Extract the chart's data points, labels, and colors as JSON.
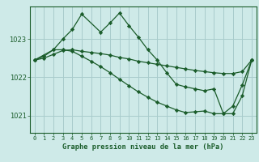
{
  "title": "Graphe pression niveau de la mer (hPa)",
  "bg_color": "#ceeae8",
  "plot_bg_color": "#ceeae8",
  "grid_color": "#a8cccc",
  "line_color": "#1a5c2a",
  "x_ticks": [
    0,
    1,
    2,
    3,
    4,
    5,
    6,
    7,
    8,
    9,
    10,
    11,
    12,
    13,
    14,
    15,
    16,
    17,
    18,
    19,
    20,
    21,
    22,
    23
  ],
  "y_ticks": [
    1021,
    1022,
    1023
  ],
  "ylim": [
    1020.55,
    1023.85
  ],
  "xlim": [
    -0.5,
    23.5
  ],
  "series": [
    {
      "x": [
        0,
        1,
        2,
        3,
        4,
        5,
        6,
        7,
        8,
        9,
        10,
        11,
        12,
        13,
        14,
        15,
        16,
        17,
        18,
        19,
        20,
        21,
        22,
        23
      ],
      "y": [
        1022.45,
        1022.5,
        1022.6,
        1022.7,
        1022.72,
        1022.68,
        1022.65,
        1022.62,
        1022.58,
        1022.52,
        1022.48,
        1022.42,
        1022.38,
        1022.34,
        1022.3,
        1022.26,
        1022.22,
        1022.18,
        1022.15,
        1022.12,
        1022.1,
        1022.1,
        1022.15,
        1022.45
      ],
      "marker": "D",
      "markersize": 2.2,
      "linewidth": 0.9
    },
    {
      "x": [
        0,
        1,
        2,
        3,
        4,
        5,
        6,
        7,
        8,
        9,
        10,
        11,
        12,
        13,
        14,
        15,
        16,
        17,
        18,
        19,
        20,
        21,
        22,
        23
      ],
      "y": [
        1022.45,
        1022.55,
        1022.72,
        1022.72,
        1022.68,
        1022.55,
        1022.42,
        1022.28,
        1022.12,
        1021.95,
        1021.78,
        1021.62,
        1021.48,
        1021.35,
        1021.25,
        1021.15,
        1021.08,
        1021.1,
        1021.12,
        1021.05,
        1021.05,
        1021.25,
        1021.8,
        1022.45
      ],
      "marker": "D",
      "markersize": 2.2,
      "linewidth": 0.9
    },
    {
      "x": [
        0,
        2,
        3,
        4,
        5,
        7,
        8,
        9,
        10,
        11,
        12,
        13,
        14,
        15,
        16,
        17,
        18,
        19,
        20,
        21,
        22,
        23
      ],
      "y": [
        1022.45,
        1022.72,
        1023.0,
        1023.25,
        1023.65,
        1023.18,
        1023.42,
        1023.68,
        1023.35,
        1023.05,
        1022.72,
        1022.45,
        1022.12,
        1021.82,
        1021.75,
        1021.7,
        1021.65,
        1021.7,
        1021.05,
        1021.05,
        1021.52,
        1022.45
      ],
      "marker": "D",
      "markersize": 2.2,
      "linewidth": 0.9
    }
  ]
}
